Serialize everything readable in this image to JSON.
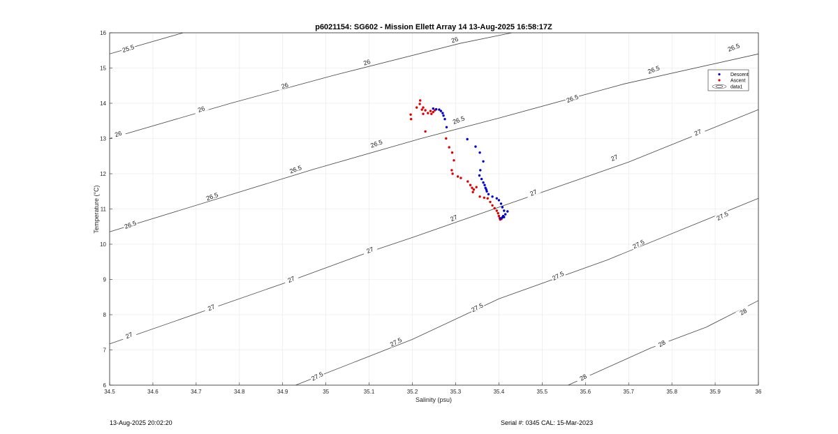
{
  "chart_data": {
    "type": "scatter",
    "title": "p6021154: SG602 - Mission Ellett Array 14 13-Aug-2025 16:58:17Z",
    "xlabel": "Salinity (psu)",
    "ylabel": "Temperature (°C)",
    "xlim": [
      34.5,
      36
    ],
    "ylim": [
      6,
      16
    ],
    "x_ticks": [
      "34.5",
      "34.6",
      "34.7",
      "34.8",
      "34.9",
      "35",
      "35.1",
      "35.2",
      "35.3",
      "35.4",
      "35.5",
      "35.6",
      "35.7",
      "35.8",
      "35.9",
      "36"
    ],
    "y_ticks": [
      "6",
      "7",
      "8",
      "9",
      "10",
      "11",
      "12",
      "13",
      "14",
      "15",
      "16"
    ],
    "grid": true,
    "legend_position": "top-right",
    "legend": [
      "Descent",
      "Ascent",
      "data1"
    ],
    "colors": {
      "descent": "#0000cc",
      "ascent": "#dd0000",
      "contour": "#444444",
      "grid": "#e6e6e6"
    },
    "series": [
      {
        "name": "Descent",
        "points": [
          [
            35.248,
            13.85
          ],
          [
            35.255,
            13.83
          ],
          [
            35.262,
            13.82
          ],
          [
            35.266,
            13.78
          ],
          [
            35.27,
            13.72
          ],
          [
            35.272,
            13.65
          ],
          [
            35.275,
            13.55
          ],
          [
            35.279,
            13.32
          ],
          [
            35.327,
            12.98
          ],
          [
            35.346,
            12.77
          ],
          [
            35.356,
            12.6
          ],
          [
            35.364,
            12.35
          ],
          [
            35.357,
            12.1
          ],
          [
            35.355,
            11.95
          ],
          [
            35.36,
            11.85
          ],
          [
            35.364,
            11.75
          ],
          [
            35.367,
            11.68
          ],
          [
            35.369,
            11.6
          ],
          [
            35.371,
            11.55
          ],
          [
            35.372,
            11.5
          ],
          [
            35.376,
            11.42
          ],
          [
            35.385,
            11.35
          ],
          [
            35.395,
            11.3
          ],
          [
            35.4,
            11.25
          ],
          [
            35.405,
            11.15
          ],
          [
            35.408,
            11.05
          ],
          [
            35.412,
            10.95
          ],
          [
            35.42,
            10.93
          ],
          [
            35.415,
            10.85
          ],
          [
            35.41,
            10.8
          ],
          [
            35.412,
            10.77
          ],
          [
            35.408,
            10.76
          ],
          [
            35.404,
            10.73
          ]
        ]
      },
      {
        "name": "Ascent",
        "points": [
          [
            35.196,
            13.68
          ],
          [
            35.197,
            13.55
          ],
          [
            35.21,
            13.88
          ],
          [
            35.217,
            13.98
          ],
          [
            35.218,
            14.08
          ],
          [
            35.222,
            13.82
          ],
          [
            35.225,
            13.88
          ],
          [
            35.23,
            13.8
          ],
          [
            35.225,
            13.7
          ],
          [
            35.236,
            13.72
          ],
          [
            35.242,
            13.78
          ],
          [
            35.244,
            13.7
          ],
          [
            35.248,
            13.75
          ],
          [
            35.252,
            13.8
          ],
          [
            35.23,
            13.2
          ],
          [
            35.278,
            13.0
          ],
          [
            35.285,
            12.75
          ],
          [
            35.292,
            12.6
          ],
          [
            35.296,
            12.38
          ],
          [
            35.291,
            12.1
          ],
          [
            35.293,
            12.0
          ],
          [
            35.305,
            11.92
          ],
          [
            35.312,
            11.88
          ],
          [
            35.328,
            11.78
          ],
          [
            35.334,
            11.68
          ],
          [
            35.338,
            11.6
          ],
          [
            35.342,
            11.55
          ],
          [
            35.34,
            11.48
          ],
          [
            35.348,
            11.62
          ],
          [
            35.356,
            11.35
          ],
          [
            35.366,
            11.32
          ],
          [
            35.374,
            11.3
          ],
          [
            35.38,
            11.2
          ],
          [
            35.385,
            11.1
          ],
          [
            35.39,
            11.02
          ],
          [
            35.395,
            10.95
          ],
          [
            35.398,
            10.88
          ],
          [
            35.4,
            10.8
          ],
          [
            35.402,
            10.74
          ],
          [
            35.403,
            10.7
          ],
          [
            35.406,
            10.72
          ]
        ]
      }
    ],
    "contours": [
      {
        "level": "25.5",
        "points": [
          [
            34.5,
            15.4
          ],
          [
            34.67,
            16.0
          ]
        ]
      },
      {
        "level": "26",
        "points": [
          [
            34.5,
            13.0
          ],
          [
            34.78,
            14.0
          ],
          [
            35.02,
            14.8
          ],
          [
            35.31,
            15.7
          ],
          [
            35.43,
            16.0
          ]
        ]
      },
      {
        "level": "26.5",
        "points": [
          [
            34.5,
            10.35
          ],
          [
            34.97,
            12.12
          ],
          [
            35.22,
            13.0
          ],
          [
            35.4,
            13.58
          ],
          [
            35.69,
            14.55
          ],
          [
            36.0,
            15.4
          ]
        ]
      },
      {
        "level": "27",
        "points": [
          [
            34.5,
            7.17
          ],
          [
            34.9,
            8.88
          ],
          [
            35.1,
            9.78
          ],
          [
            35.2,
            10.19
          ],
          [
            35.4,
            11.05
          ],
          [
            35.7,
            12.33
          ],
          [
            36.0,
            13.82
          ]
        ]
      },
      {
        "level": "27.5",
        "points": [
          [
            34.93,
            6.0
          ],
          [
            35.2,
            7.3
          ],
          [
            35.4,
            8.45
          ],
          [
            35.65,
            9.55
          ],
          [
            36.0,
            11.3
          ]
        ]
      },
      {
        "level": "28",
        "points": [
          [
            35.56,
            6.0
          ],
          [
            35.75,
            7.05
          ],
          [
            35.88,
            7.65
          ],
          [
            36.0,
            8.4
          ]
        ]
      }
    ],
    "contour_labels": [
      {
        "text": "25.5",
        "x": 34.543,
        "y": 15.55,
        "angle": -18
      },
      {
        "text": "26",
        "x": 34.52,
        "y": 13.13,
        "angle": -18
      },
      {
        "text": "26",
        "x": 34.712,
        "y": 13.83,
        "angle": -18
      },
      {
        "text": "26",
        "x": 34.905,
        "y": 14.5,
        "angle": -18
      },
      {
        "text": "26",
        "x": 35.095,
        "y": 15.16,
        "angle": -18
      },
      {
        "text": "26",
        "x": 35.298,
        "y": 15.8,
        "angle": -18
      },
      {
        "text": "26.5",
        "x": 34.548,
        "y": 10.55,
        "angle": -20
      },
      {
        "text": "26.5",
        "x": 34.737,
        "y": 11.35,
        "angle": -20
      },
      {
        "text": "26.5",
        "x": 34.93,
        "y": 12.12,
        "angle": -20
      },
      {
        "text": "26.5",
        "x": 35.117,
        "y": 12.85,
        "angle": -20
      },
      {
        "text": "26.5",
        "x": 35.307,
        "y": 13.52,
        "angle": -20
      },
      {
        "text": "26.5",
        "x": 35.57,
        "y": 14.13,
        "angle": -20
      },
      {
        "text": "26.5",
        "x": 35.758,
        "y": 14.95,
        "angle": -20
      },
      {
        "text": "26.5",
        "x": 35.943,
        "y": 15.58,
        "angle": -20
      },
      {
        "text": "27",
        "x": 34.545,
        "y": 7.41,
        "angle": -23
      },
      {
        "text": "27",
        "x": 34.735,
        "y": 8.2,
        "angle": -23
      },
      {
        "text": "27",
        "x": 34.92,
        "y": 9.0,
        "angle": -23
      },
      {
        "text": "27",
        "x": 35.102,
        "y": 9.83,
        "angle": -23
      },
      {
        "text": "27",
        "x": 35.296,
        "y": 10.74,
        "angle": -23
      },
      {
        "text": "27",
        "x": 35.48,
        "y": 11.46,
        "angle": -23
      },
      {
        "text": "27",
        "x": 35.667,
        "y": 12.45,
        "angle": -23
      },
      {
        "text": "27",
        "x": 35.86,
        "y": 13.17,
        "angle": -23
      },
      {
        "text": "27.5",
        "x": 34.98,
        "y": 6.25,
        "angle": -27
      },
      {
        "text": "27.5",
        "x": 35.162,
        "y": 7.22,
        "angle": -27
      },
      {
        "text": "27.5",
        "x": 35.35,
        "y": 8.2,
        "angle": -27
      },
      {
        "text": "27.5",
        "x": 35.537,
        "y": 9.1,
        "angle": -27
      },
      {
        "text": "27.5",
        "x": 35.723,
        "y": 10.0,
        "angle": -27
      },
      {
        "text": "27.5",
        "x": 35.917,
        "y": 10.8,
        "angle": -27
      },
      {
        "text": "28",
        "x": 35.595,
        "y": 6.22,
        "angle": -30
      },
      {
        "text": "28",
        "x": 35.777,
        "y": 7.18,
        "angle": -30
      },
      {
        "text": "28",
        "x": 35.965,
        "y": 8.08,
        "angle": -30
      }
    ]
  },
  "footer": {
    "timestamp": "13-Aug-2025 20:02:20",
    "serial": "Serial #: 0345  CAL: 15-Mar-2023"
  }
}
